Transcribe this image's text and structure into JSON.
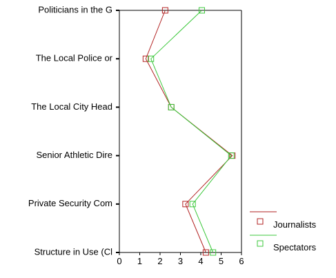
{
  "chart_data": {
    "type": "line",
    "orientation": "horizontal",
    "categories": [
      "Politicians in the G",
      "The Local Police or",
      "The Local City Head",
      "Senior Athletic Dire",
      "Private Security Com",
      "Structure in Use (Cl"
    ],
    "xlim": [
      0,
      6
    ],
    "xticks": [
      "0",
      "1",
      "2",
      "3",
      "4",
      "5",
      "6"
    ],
    "legend_position": "bottom-right",
    "series": [
      {
        "name": "Journalists",
        "color": "#b22222",
        "marker": "square",
        "values": [
          2.25,
          1.3,
          2.55,
          5.55,
          3.25,
          4.25
        ]
      },
      {
        "name": "Spectators",
        "color": "#3cc83c",
        "marker": "square",
        "values": [
          4.05,
          1.55,
          2.55,
          5.5,
          3.6,
          4.6
        ]
      }
    ]
  }
}
